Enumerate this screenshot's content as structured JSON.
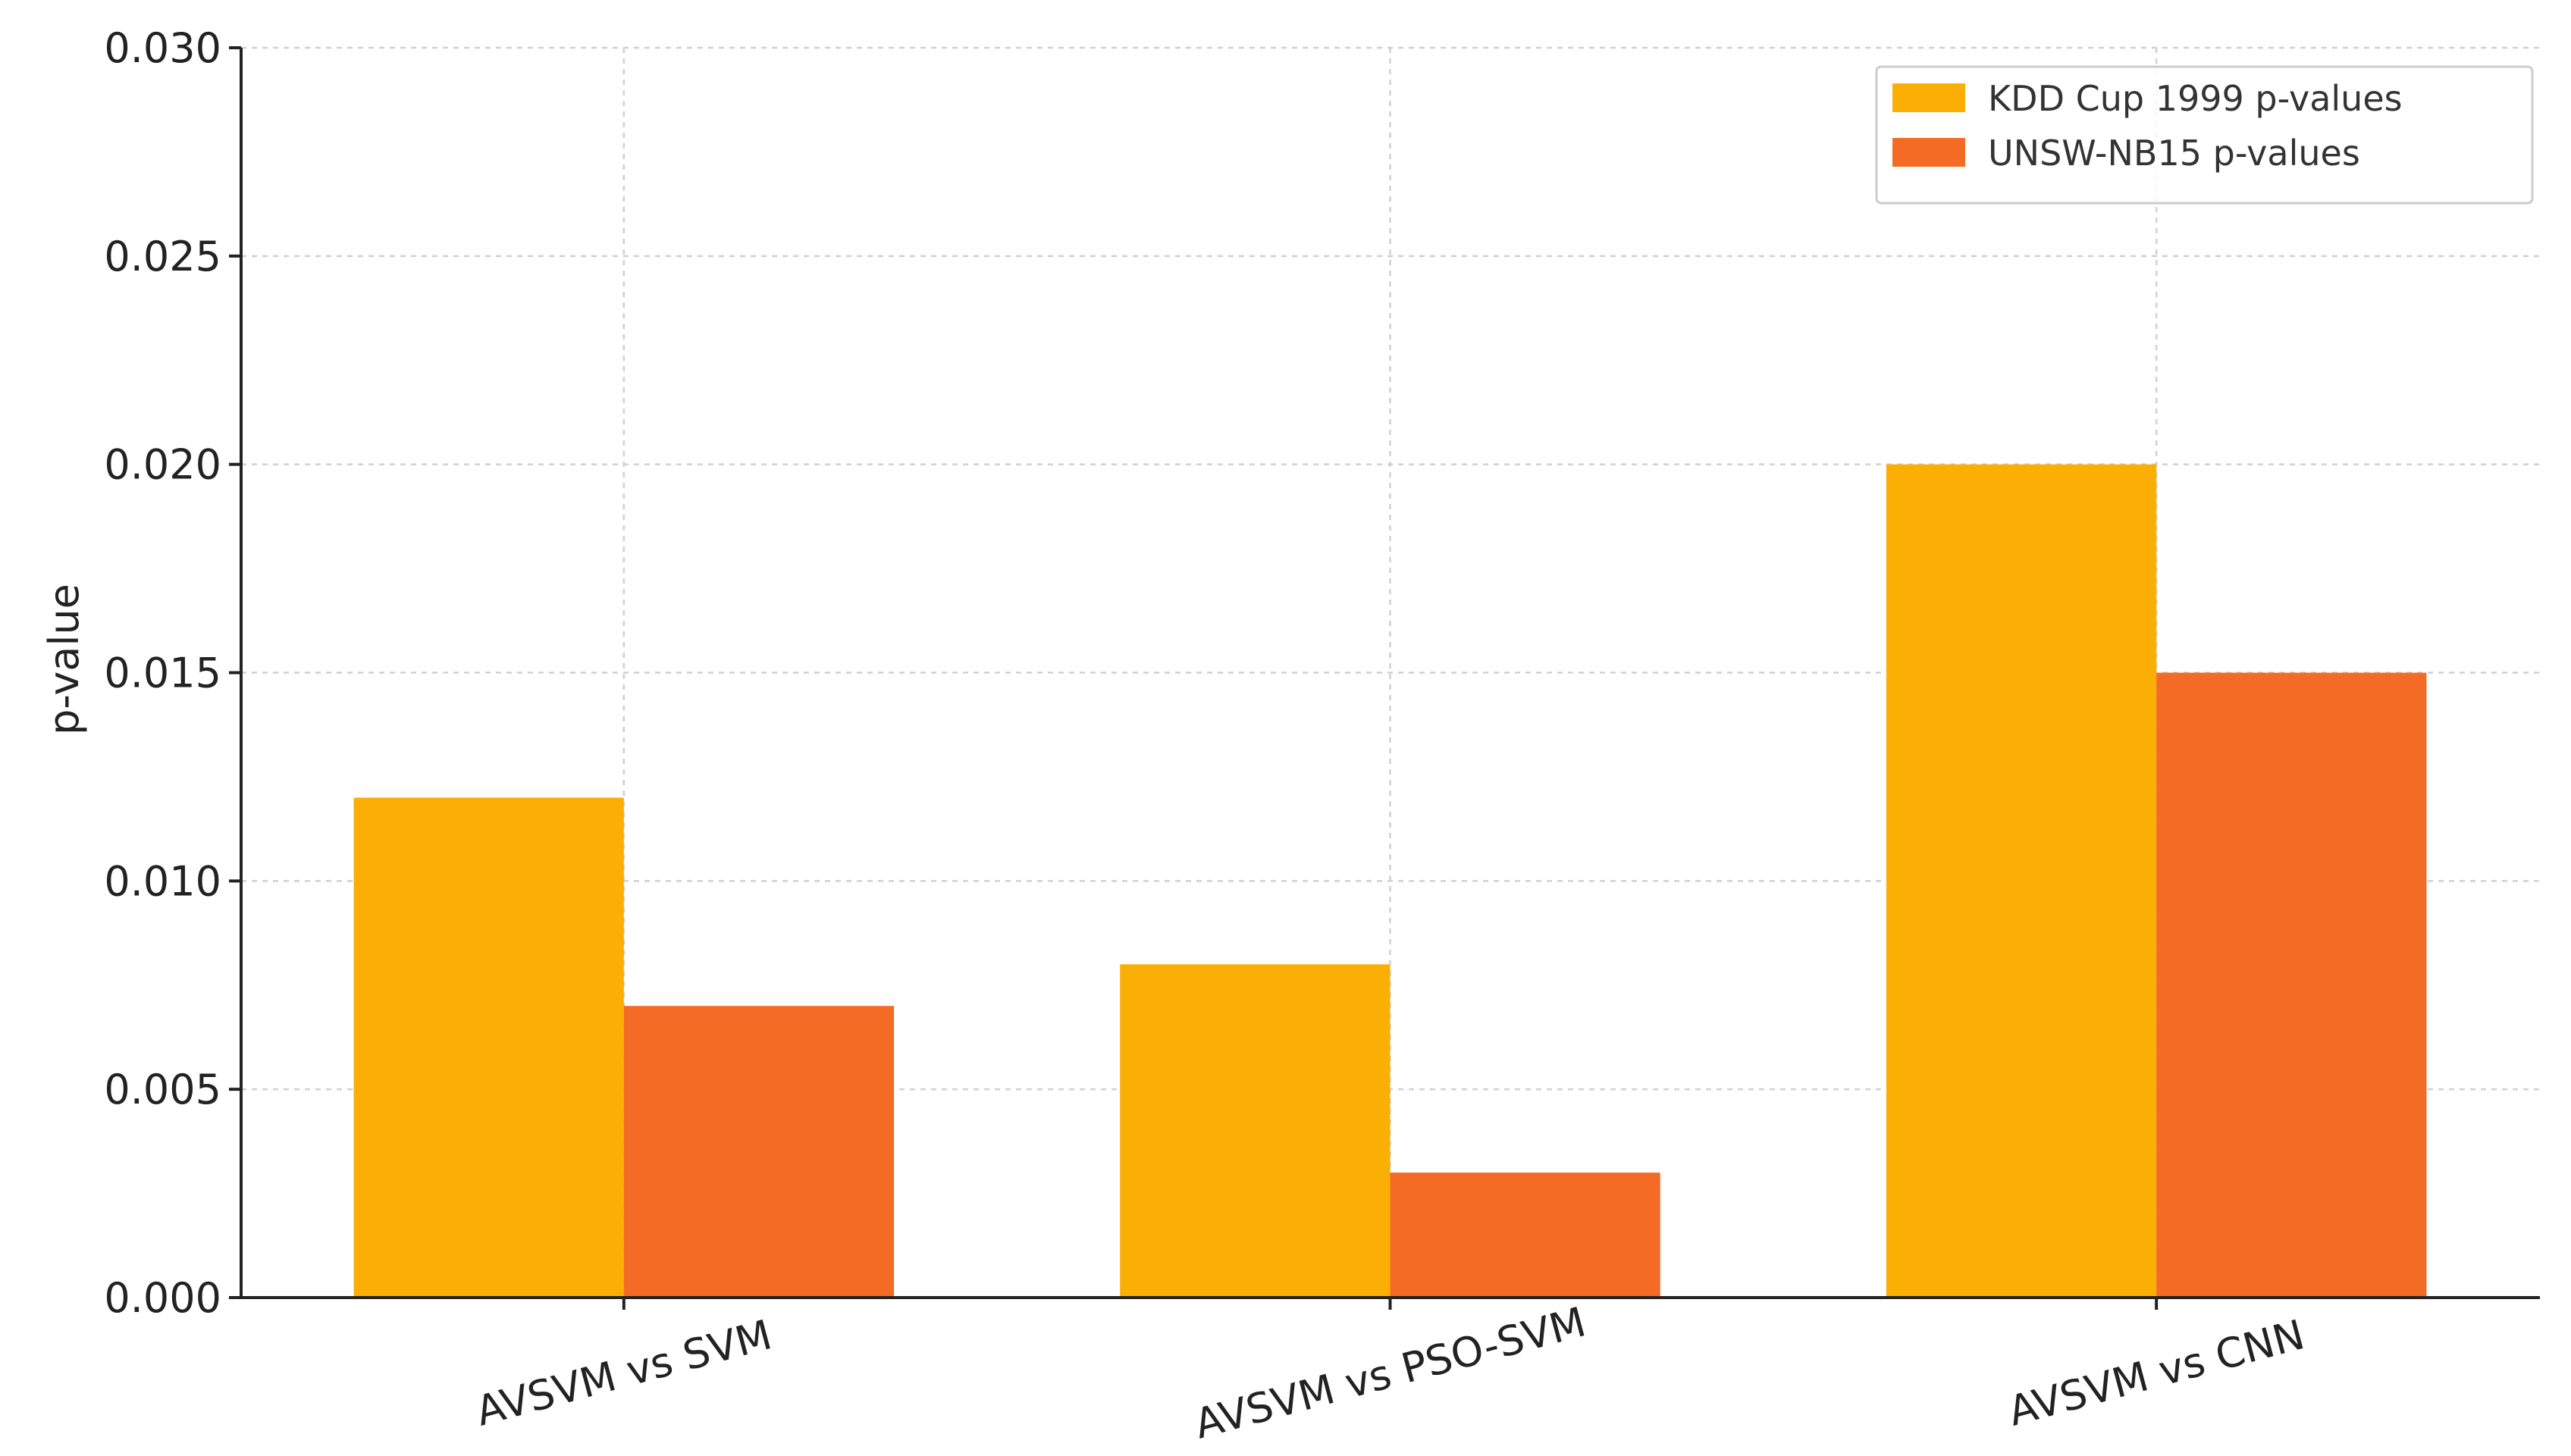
{
  "chart_data": {
    "type": "bar",
    "title": "",
    "xlabel": "",
    "ylabel": "p-value",
    "categories": [
      "AVSVM vs SVM",
      "AVSVM vs PSO-SVM",
      "AVSVM vs CNN"
    ],
    "series": [
      {
        "name": "KDD Cup 1999 p-values",
        "color": "#FBAE04",
        "values": [
          0.012,
          0.008,
          0.02
        ]
      },
      {
        "name": "UNSW-NB15 p-values",
        "color": "#F46B25",
        "values": [
          0.007,
          0.003,
          0.015
        ]
      }
    ],
    "ylim": [
      0,
      0.03
    ],
    "yticks": [
      "0.000",
      "0.005",
      "0.010",
      "0.015",
      "0.020",
      "0.025",
      "0.030"
    ],
    "grid": true,
    "legend_position": "top-right",
    "x_tick_rotation_deg": -15
  }
}
